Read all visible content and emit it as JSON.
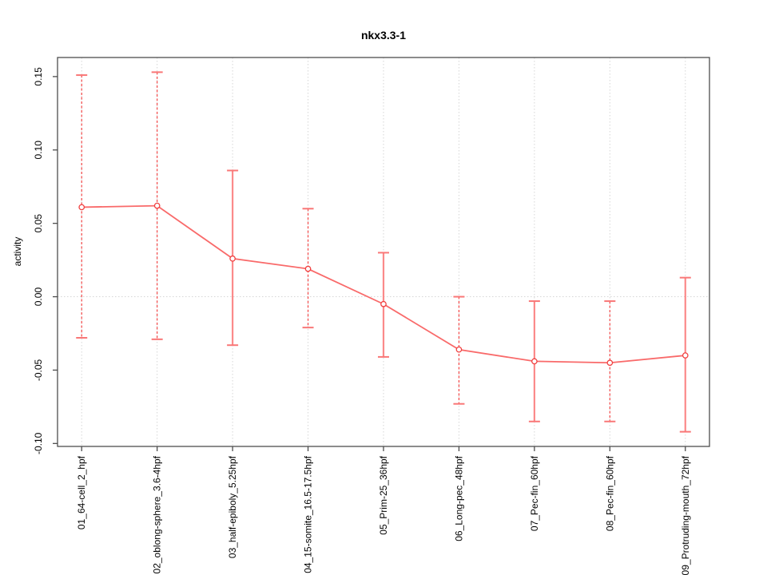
{
  "chart_data": {
    "type": "line",
    "title": "nkx3.3-1",
    "ylabel": "activity",
    "xlabel": "",
    "legend": "none",
    "grid": {
      "vertical_dotted_per_category": true,
      "horizontal_dotted_at": 0
    },
    "categories": [
      "01_64-cell_2_hpf",
      "02_oblong-sphere_3.6-4hpf",
      "03_half-epiboly_5.25hpf",
      "04_15-somite_16.5-17.5hpf",
      "05_Prim-25_36hpf",
      "06_Long-pec_48hpf",
      "07_Pec-fin_60hpf",
      "08_Pec-fin_60hpf",
      "09_Protruding-mouth_72hpf"
    ],
    "series": [
      {
        "name": "activity",
        "values": [
          0.061,
          0.062,
          0.026,
          0.019,
          -0.005,
          -0.036,
          -0.044,
          -0.045,
          -0.04
        ]
      }
    ],
    "error_upper": [
      0.151,
      0.153,
      0.086,
      0.06,
      0.03,
      0.0,
      -0.003,
      -0.003,
      0.013
    ],
    "error_lower": [
      -0.028,
      -0.029,
      -0.033,
      -0.021,
      -0.041,
      -0.073,
      -0.085,
      -0.085,
      -0.092
    ],
    "error_bar_styles": [
      "dashed",
      "dashed",
      "solid",
      "dashed",
      "solid",
      "dashed",
      "solid",
      "dashed",
      "solid"
    ],
    "y_tick_values": [
      -0.1,
      -0.05,
      0.0,
      0.05,
      0.1,
      0.15
    ],
    "y_tick_labels": [
      "-0.10",
      "-0.05",
      "0.00",
      "0.05",
      "0.10",
      "0.15"
    ],
    "ylim": [
      -0.102,
      0.163
    ],
    "colors": {
      "line": "#f96a6a",
      "point_stroke": "#f04040",
      "error_dashed": "#f44545",
      "error_solid": "#fb8a8a",
      "cap": "#f97777",
      "grid": "#d6d6d6",
      "axis": "#4d4d4d",
      "text": "#000000"
    }
  }
}
